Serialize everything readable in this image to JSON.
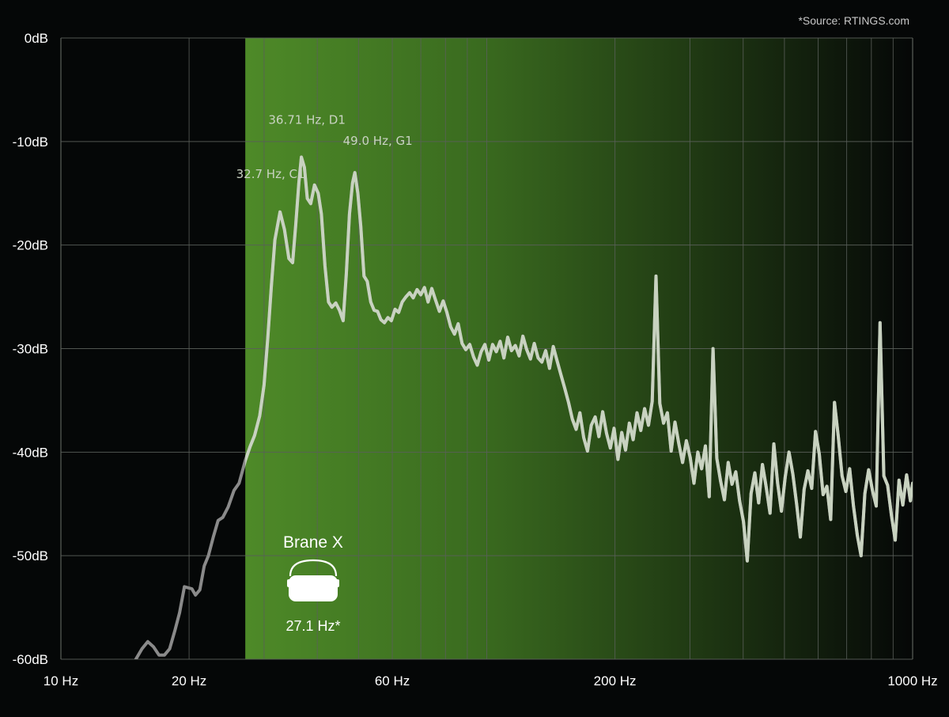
{
  "source_note": "*Source: RTINGS.com",
  "product": {
    "name": "Brane X",
    "value_label": "27.1 Hz*",
    "icon": "speaker-icon"
  },
  "colors": {
    "background": "#050707",
    "highlight_start": "#4e8a28",
    "highlight_end": "#050707",
    "curve": "#c8d2c0",
    "curve_dim": "#8a8a8a",
    "grid": "#5a5f5a"
  },
  "chart_data": {
    "type": "line",
    "xscale": "log",
    "xlim": [
      10,
      1000
    ],
    "ylim": [
      -60,
      0
    ],
    "grid": true,
    "highlight_from_hz": 27.1,
    "x_ticks": [
      {
        "value": 10,
        "label": "10 Hz"
      },
      {
        "value": 20,
        "label": "20 Hz"
      },
      {
        "value": 60,
        "label": "60 Hz"
      },
      {
        "value": 200,
        "label": "200 Hz"
      },
      {
        "value": 1000,
        "label": "1000 Hz"
      }
    ],
    "x_minor_grid": [
      20,
      30,
      40,
      50,
      60,
      70,
      80,
      90,
      100,
      200,
      300,
      400,
      500,
      600,
      700,
      800,
      900
    ],
    "y_ticks": [
      {
        "value": 0,
        "label": "0dB"
      },
      {
        "value": -10,
        "label": "-10dB"
      },
      {
        "value": -20,
        "label": "-20dB"
      },
      {
        "value": -30,
        "label": "-30dB"
      },
      {
        "value": -40,
        "label": "-40dB"
      },
      {
        "value": -50,
        "label": "-50dB"
      },
      {
        "value": -60,
        "label": "-60dB"
      }
    ],
    "annotations": [
      {
        "text": "32.7 Hz, C1",
        "x": 32.7,
        "y": -16.8
      },
      {
        "text": "36.71 Hz, D1",
        "x": 36.71,
        "y": -11.5
      },
      {
        "text": "49.0 Hz, G1",
        "x": 49.0,
        "y": -13.0
      }
    ],
    "series": [
      {
        "values": [
          [
            15.0,
            -60.0
          ],
          [
            15.5,
            -59.0
          ],
          [
            16.0,
            -58.3
          ],
          [
            16.5,
            -58.8
          ],
          [
            17.0,
            -59.6
          ],
          [
            17.5,
            -59.6
          ],
          [
            18.0,
            -59.0
          ],
          [
            18.5,
            -57.3
          ],
          [
            19.0,
            -55.5
          ],
          [
            19.5,
            -53.0
          ],
          [
            20.3,
            -53.2
          ],
          [
            20.7,
            -53.8
          ],
          [
            21.2,
            -53.3
          ],
          [
            21.7,
            -51.0
          ],
          [
            22.2,
            -50.0
          ],
          [
            22.8,
            -48.2
          ],
          [
            23.4,
            -46.6
          ],
          [
            24.0,
            -46.3
          ],
          [
            24.7,
            -45.3
          ],
          [
            25.5,
            -43.7
          ],
          [
            26.2,
            -43.0
          ],
          [
            27.1,
            -40.8
          ],
          [
            27.8,
            -39.5
          ],
          [
            28.5,
            -38.4
          ],
          [
            29.3,
            -36.5
          ],
          [
            30.0,
            -33.5
          ],
          [
            30.6,
            -29.0
          ],
          [
            31.2,
            -24.0
          ],
          [
            31.8,
            -19.5
          ],
          [
            32.7,
            -16.8
          ],
          [
            33.5,
            -18.5
          ],
          [
            34.3,
            -21.3
          ],
          [
            35.0,
            -21.7
          ],
          [
            35.6,
            -18.0
          ],
          [
            36.2,
            -14.0
          ],
          [
            36.71,
            -11.5
          ],
          [
            37.3,
            -12.5
          ],
          [
            37.9,
            -15.5
          ],
          [
            38.6,
            -16.0
          ],
          [
            39.4,
            -14.2
          ],
          [
            40.2,
            -15.0
          ],
          [
            40.9,
            -17.0
          ],
          [
            41.7,
            -22.0
          ],
          [
            42.5,
            -25.5
          ],
          [
            43.3,
            -26.0
          ],
          [
            44.2,
            -25.6
          ],
          [
            45.1,
            -26.3
          ],
          [
            46.0,
            -27.3
          ],
          [
            46.8,
            -22.8
          ],
          [
            47.6,
            -17.0
          ],
          [
            48.4,
            -14.0
          ],
          [
            49.0,
            -13.0
          ],
          [
            49.8,
            -15.0
          ],
          [
            50.6,
            -18.2
          ],
          [
            51.5,
            -23.0
          ],
          [
            52.4,
            -23.5
          ],
          [
            53.4,
            -25.5
          ],
          [
            54.4,
            -26.3
          ],
          [
            55.4,
            -26.4
          ],
          [
            56.4,
            -27.2
          ],
          [
            57.5,
            -27.5
          ],
          [
            58.6,
            -27.0
          ],
          [
            59.7,
            -27.3
          ],
          [
            60.9,
            -26.2
          ],
          [
            62.1,
            -26.5
          ],
          [
            63.3,
            -25.5
          ],
          [
            64.6,
            -25.0
          ],
          [
            65.9,
            -24.6
          ],
          [
            67.2,
            -25.1
          ],
          [
            68.6,
            -24.3
          ],
          [
            70.0,
            -24.8
          ],
          [
            71.4,
            -24.1
          ],
          [
            72.8,
            -25.5
          ],
          [
            74.3,
            -24.2
          ],
          [
            75.8,
            -25.3
          ],
          [
            77.4,
            -26.4
          ],
          [
            79.0,
            -25.4
          ],
          [
            80.6,
            -26.5
          ],
          [
            82.3,
            -27.9
          ],
          [
            84.0,
            -28.6
          ],
          [
            85.7,
            -27.6
          ],
          [
            87.5,
            -29.5
          ],
          [
            89.3,
            -30.1
          ],
          [
            91.2,
            -29.6
          ],
          [
            93.1,
            -30.8
          ],
          [
            95.0,
            -31.6
          ],
          [
            97.0,
            -30.3
          ],
          [
            99.0,
            -29.6
          ],
          [
            101.1,
            -31.1
          ],
          [
            103.2,
            -29.6
          ],
          [
            105.3,
            -30.3
          ],
          [
            107.5,
            -29.3
          ],
          [
            109.7,
            -30.9
          ],
          [
            112.0,
            -28.9
          ],
          [
            114.3,
            -30.2
          ],
          [
            116.7,
            -29.7
          ],
          [
            119.1,
            -30.7
          ],
          [
            121.6,
            -28.8
          ],
          [
            124.1,
            -30.1
          ],
          [
            126.7,
            -31.0
          ],
          [
            129.3,
            -29.5
          ],
          [
            132.0,
            -30.9
          ],
          [
            134.7,
            -31.3
          ],
          [
            137.5,
            -30.2
          ],
          [
            140.4,
            -31.9
          ],
          [
            143.3,
            -29.8
          ],
          [
            146.3,
            -31.2
          ],
          [
            149.3,
            -32.5
          ],
          [
            152.4,
            -33.8
          ],
          [
            155.6,
            -35.2
          ],
          [
            158.8,
            -36.8
          ],
          [
            162.1,
            -37.8
          ],
          [
            165.5,
            -36.2
          ],
          [
            168.9,
            -38.6
          ],
          [
            172.4,
            -39.9
          ],
          [
            176.0,
            -37.4
          ],
          [
            179.7,
            -36.6
          ],
          [
            183.4,
            -38.5
          ],
          [
            187.2,
            -36.1
          ],
          [
            191.1,
            -38.2
          ],
          [
            195.1,
            -39.6
          ],
          [
            199.1,
            -37.7
          ],
          [
            203.3,
            -40.7
          ],
          [
            207.5,
            -38.1
          ],
          [
            211.8,
            -39.8
          ],
          [
            216.2,
            -37.2
          ],
          [
            220.7,
            -38.8
          ],
          [
            225.3,
            -36.2
          ],
          [
            230.0,
            -37.9
          ],
          [
            234.8,
            -35.8
          ],
          [
            239.7,
            -37.4
          ],
          [
            244.6,
            -35.1
          ],
          [
            249.7,
            -23.0
          ],
          [
            254.9,
            -35.3
          ],
          [
            260.2,
            -37.2
          ],
          [
            265.6,
            -36.2
          ],
          [
            271.1,
            -39.9
          ],
          [
            276.7,
            -37.1
          ],
          [
            282.5,
            -39.2
          ],
          [
            288.3,
            -41.0
          ],
          [
            294.3,
            -38.9
          ],
          [
            300.4,
            -40.5
          ],
          [
            306.6,
            -43.0
          ],
          [
            313.0,
            -40.0
          ],
          [
            319.5,
            -41.6
          ],
          [
            326.2,
            -39.4
          ],
          [
            332.9,
            -44.3
          ],
          [
            339.8,
            -30.0
          ],
          [
            346.9,
            -40.6
          ],
          [
            354.1,
            -42.8
          ],
          [
            361.5,
            -44.6
          ],
          [
            369.0,
            -41.0
          ],
          [
            376.6,
            -43.1
          ],
          [
            384.4,
            -41.9
          ],
          [
            392.4,
            -44.7
          ],
          [
            400.6,
            -46.7
          ],
          [
            408.9,
            -50.5
          ],
          [
            417.4,
            -44.0
          ],
          [
            426.1,
            -42.0
          ],
          [
            434.9,
            -44.9
          ],
          [
            443.9,
            -41.2
          ],
          [
            453.1,
            -43.4
          ],
          [
            462.5,
            -45.9
          ],
          [
            472.1,
            -39.2
          ],
          [
            481.9,
            -43.0
          ],
          [
            491.9,
            -45.7
          ],
          [
            502.1,
            -42.4
          ],
          [
            512.5,
            -40.0
          ],
          [
            523.1,
            -42.1
          ],
          [
            534.0,
            -45.0
          ],
          [
            545.0,
            -48.2
          ],
          [
            556.3,
            -43.6
          ],
          [
            567.8,
            -41.8
          ],
          [
            579.6,
            -43.5
          ],
          [
            591.6,
            -38.0
          ],
          [
            603.9,
            -40.2
          ],
          [
            616.4,
            -44.1
          ],
          [
            629.2,
            -43.3
          ],
          [
            642.2,
            -46.5
          ],
          [
            655.5,
            -35.2
          ],
          [
            669.1,
            -38.5
          ],
          [
            683.0,
            -42.3
          ],
          [
            697.1,
            -43.8
          ],
          [
            711.6,
            -41.6
          ],
          [
            726.3,
            -45.2
          ],
          [
            741.4,
            -48.0
          ],
          [
            756.7,
            -50.0
          ],
          [
            772.4,
            -44.0
          ],
          [
            788.4,
            -41.7
          ],
          [
            804.7,
            -43.7
          ],
          [
            821.4,
            -45.2
          ],
          [
            838.4,
            -27.5
          ],
          [
            855.8,
            -42.3
          ],
          [
            873.5,
            -43.2
          ],
          [
            891.6,
            -46.1
          ],
          [
            910.1,
            -48.5
          ],
          [
            929.0,
            -42.7
          ],
          [
            948.2,
            -45.1
          ],
          [
            967.9,
            -42.2
          ],
          [
            988.0,
            -44.7
          ],
          [
            1000.0,
            -43.0
          ]
        ]
      }
    ]
  }
}
